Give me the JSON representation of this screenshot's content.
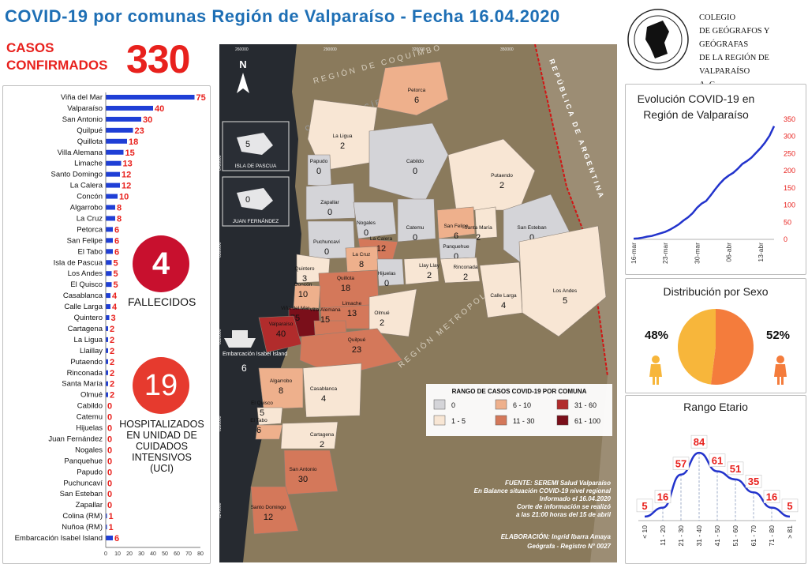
{
  "header": {
    "title": "COVID-19 por comunas Región de Valparaíso - Fecha 16.04.2020",
    "org_lines": [
      "COLEGIO",
      "DE GEÓGRAFOS Y GEÓGRAFAS",
      "DE LA REGIÓN DE VALPARAÍSO",
      "A. G."
    ],
    "seal_text": "COLEGIO DE GEÓGRAFOS · REGIÓN DE VALPARAÍSO"
  },
  "summary": {
    "casos_label_1": "CASOS",
    "casos_label_2": "CONFIRMADOS",
    "casos_value": "330",
    "fallecidos_value": "4",
    "fallecidos_label": "FALLECIDOS",
    "uci_value": "19",
    "uci_label_lines": [
      "HOSPITALIZADOS",
      "EN UNIDAD DE",
      "CUIDADOS",
      "INTENSIVOS",
      "(UCI)"
    ]
  },
  "colors": {
    "title_blue": "#1e6fb5",
    "accent_red": "#e8211d",
    "bar_blue": "#1f3fd6",
    "line_blue": "#2233cc",
    "female_orange": "#f7b63b",
    "male_orange": "#f47c3c"
  },
  "chart_data": [
    {
      "type": "bar",
      "orientation": "horizontal",
      "categories": [
        "Viña del Mar",
        "Valparaíso",
        "San Antonio",
        "Quilpué",
        "Quillota",
        "Villa Alemana",
        "Limache",
        "Santo Domingo",
        "La Calera",
        "Concón",
        "Algarrobo",
        "La Cruz",
        "Petorca",
        "San Felipe",
        "El Tabo",
        "Isla de Pascua",
        "Los Andes",
        "El Quisco",
        "Casablanca",
        "Calle Larga",
        "Quintero",
        "Cartagena",
        "La Ligua",
        "Llaillay",
        "Putaendo",
        "Rinconada",
        "Santa María",
        "Olmué",
        "Cabildo",
        "Catemu",
        "Hijuelas",
        "Juan Fernández",
        "Nogales",
        "Panquehue",
        "Papudo",
        "Puchuncaví",
        "San Esteban",
        "Zapallar",
        "Colina (RM)",
        "Nuñoa (RM)",
        "Embarcación Isabel Island"
      ],
      "values": [
        75,
        40,
        30,
        23,
        18,
        15,
        13,
        12,
        12,
        10,
        8,
        8,
        6,
        6,
        6,
        5,
        5,
        5,
        4,
        4,
        3,
        2,
        2,
        2,
        2,
        2,
        2,
        2,
        0,
        0,
        0,
        0,
        0,
        0,
        0,
        0,
        0,
        0,
        1,
        1,
        6
      ],
      "xlim": [
        0,
        80
      ],
      "xticks": [
        "0",
        "10",
        "20",
        "30",
        "40",
        "50",
        "60",
        "70",
        "80"
      ]
    },
    {
      "type": "line",
      "title": "Evolución COVID-19 en Región de Valparaíso",
      "x": [
        "16-mar",
        "17-mar",
        "18-mar",
        "19-mar",
        "20-mar",
        "21-mar",
        "22-mar",
        "23-mar",
        "24-mar",
        "25-mar",
        "26-mar",
        "27-mar",
        "28-mar",
        "29-mar",
        "30-mar",
        "31-mar",
        "01-abr",
        "02-abr",
        "03-abr",
        "04-abr",
        "05-abr",
        "06-abr",
        "07-abr",
        "08-abr",
        "09-abr",
        "10-abr",
        "11-abr",
        "12-abr",
        "13-abr",
        "14-abr",
        "15-abr",
        "16-abr"
      ],
      "values": [
        2,
        3,
        5,
        8,
        10,
        14,
        18,
        22,
        28,
        36,
        44,
        55,
        64,
        76,
        92,
        104,
        112,
        128,
        146,
        162,
        176,
        186,
        194,
        206,
        220,
        228,
        238,
        252,
        266,
        282,
        302,
        330
      ],
      "xticks": [
        "16-mar",
        "23-mar",
        "30-mar",
        "06-abr",
        "13-abr"
      ],
      "ylim": [
        0,
        350
      ],
      "yticks": [
        "0",
        "50",
        "100",
        "150",
        "200",
        "250",
        "300",
        "350"
      ]
    },
    {
      "type": "pie",
      "title": "Distribución por Sexo",
      "labels": [
        "Mujeres",
        "Hombres"
      ],
      "values": [
        48,
        52
      ],
      "value_labels": [
        "48%",
        "52%"
      ]
    },
    {
      "type": "line",
      "title": "Rango Etario",
      "categories": [
        "< 10",
        "11 - 20",
        "21 - 30",
        "31 - 40",
        "41 - 50",
        "51 - 60",
        "61 - 70",
        "71 - 80",
        "> 81"
      ],
      "values": [
        5,
        16,
        57,
        84,
        61,
        51,
        35,
        16,
        5
      ]
    }
  ],
  "map": {
    "ocean_labels": [
      "OCÉANO PACÍFICO"
    ],
    "region_labels": [
      "REGIÓN DE COQUIMBO",
      "REPÚBLICA DE ARGENTINA",
      "REGIÓN METROPOLITANA"
    ],
    "coord_top": [
      "260000",
      "290000",
      "320000",
      "350000"
    ],
    "coord_left": [
      "6400000",
      "6360000",
      "6320000",
      "6280000",
      "6240000"
    ],
    "insets": [
      {
        "name": "ISLA DE PASCUA",
        "value": "5"
      },
      {
        "name": "JUAN FERNÁNDEZ",
        "value": "0"
      }
    ],
    "embarcacion": {
      "name": "Embarcación Isabel Island",
      "value": "6"
    },
    "comunas": [
      {
        "name": "Petorca",
        "value": "6"
      },
      {
        "name": "La Ligua",
        "value": "2"
      },
      {
        "name": "Cabildo",
        "value": "0"
      },
      {
        "name": "Papudo",
        "value": "0"
      },
      {
        "name": "Zapallar",
        "value": "0"
      },
      {
        "name": "Putaendo",
        "value": "2"
      },
      {
        "name": "San Esteban",
        "value": "0"
      },
      {
        "name": "Nogales",
        "value": "0"
      },
      {
        "name": "Catemu",
        "value": "0"
      },
      {
        "name": "San Felipe",
        "value": "6"
      },
      {
        "name": "Santa María",
        "value": "2"
      },
      {
        "name": "Puchuncaví",
        "value": "0"
      },
      {
        "name": "La Calera",
        "value": "12"
      },
      {
        "name": "Panquehue",
        "value": "0"
      },
      {
        "name": "La Cruz",
        "value": "8"
      },
      {
        "name": "Quintero",
        "value": "3"
      },
      {
        "name": "Hijuelas",
        "value": "0"
      },
      {
        "name": "Llay Llay",
        "value": "2"
      },
      {
        "name": "Rinconada",
        "value": "2"
      },
      {
        "name": "Quillota",
        "value": "18"
      },
      {
        "name": "Calle Larga",
        "value": "4"
      },
      {
        "name": "Los Andes",
        "value": "5"
      },
      {
        "name": "Concón",
        "value": "10"
      },
      {
        "name": "Limache",
        "value": "13"
      },
      {
        "name": "Viña del Mar",
        "value": "75"
      },
      {
        "name": "Villa Alemana",
        "value": "15"
      },
      {
        "name": "Olmué",
        "value": "2"
      },
      {
        "name": "Valparaíso",
        "value": "40"
      },
      {
        "name": "Quilpué",
        "value": "23"
      },
      {
        "name": "Algarrobo",
        "value": "8"
      },
      {
        "name": "Casablanca",
        "value": "4"
      },
      {
        "name": "El Quisco",
        "value": "5"
      },
      {
        "name": "El Tabo",
        "value": "6"
      },
      {
        "name": "Cartagena",
        "value": "2"
      },
      {
        "name": "San Antonio",
        "value": "30"
      },
      {
        "name": "Santo Domingo",
        "value": "12"
      }
    ],
    "legend": {
      "title": "RANGO DE CASOS COVID-19 POR COMUNA",
      "items": [
        {
          "label": "0",
          "color": "#d4d4d8"
        },
        {
          "label": "1 - 5",
          "color": "#f8e6d4"
        },
        {
          "label": "6 - 10",
          "color": "#eeb08c"
        },
        {
          "label": "11 - 30",
          "color": "#d4785a"
        },
        {
          "label": "31 - 60",
          "color": "#b12c2c"
        },
        {
          "label": "61 - 100",
          "color": "#7a0f1a"
        }
      ]
    },
    "source_lines": [
      "FUENTE: SEREMI Salud Valparaíso",
      "En Balance situación COVID-19 nivel regional",
      "Informado el 16.04.2020",
      "Corte de información se realizó",
      "a las 21:00 horas del 15 de abril"
    ],
    "author_lines": [
      "ELABORACIÓN: Ingrid Ibarra Amaya",
      "Geógrafa - Registro N° 0027"
    ],
    "north_label": "N"
  }
}
